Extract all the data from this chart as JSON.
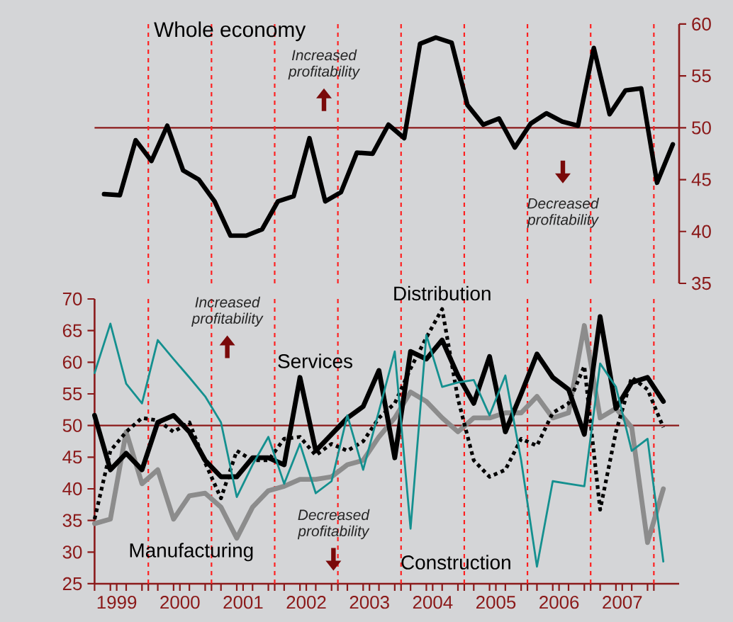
{
  "chart_data": [
    {
      "type": "line",
      "title": "Whole economy",
      "x": [
        1999.3,
        1999.55,
        1999.8,
        2000.05,
        2000.3,
        2000.55,
        2000.8,
        2001.05,
        2001.3,
        2001.55,
        2001.8,
        2002.05,
        2002.3,
        2002.55,
        2002.8,
        2003.05,
        2003.3,
        2003.55,
        2003.8,
        2004.05,
        2004.3,
        2004.55,
        2004.8,
        2005.05,
        2005.3,
        2005.55,
        2005.8,
        2006.05,
        2006.3,
        2006.55,
        2006.8,
        2007.05,
        2007.3,
        2007.55,
        2007.8,
        2008.05,
        2008.3
      ],
      "series": [
        {
          "color": "#000000",
          "values": [
            43.6,
            43.5,
            48.8,
            46.8,
            50.2,
            45.9,
            45.0,
            42.9,
            39.6,
            39.6,
            40.2,
            42.9,
            43.4,
            49.0,
            42.9,
            43.8,
            47.6,
            47.5,
            50.3,
            49.0,
            58.1,
            58.7,
            58.2,
            52.2,
            50.3,
            50.9,
            48.1,
            50.4,
            51.4,
            50.6,
            50.2,
            57.7,
            51.3,
            53.6,
            53.8,
            44.7,
            48.4
          ]
        }
      ],
      "xlim": [
        1999.15,
        2008.4
      ],
      "ylim": [
        35,
        60
      ],
      "yticks": [
        35,
        40,
        45,
        50,
        55,
        60
      ],
      "tick_labels": "y",
      "ref_lines": [
        {
          "axis": "y",
          "value": 50,
          "color": "#8b1a1a",
          "line_style": "solid"
        },
        {
          "axis": "x",
          "value": 2000,
          "color": "#ff2020",
          "line_style": "dashed"
        },
        {
          "axis": "x",
          "value": 2001,
          "color": "#ff2020",
          "line_style": "dashed"
        },
        {
          "axis": "x",
          "value": 2002,
          "color": "#ff2020",
          "line_style": "dashed"
        },
        {
          "axis": "x",
          "value": 2003,
          "color": "#ff2020",
          "line_style": "dashed"
        },
        {
          "axis": "x",
          "value": 2004,
          "color": "#ff2020",
          "line_style": "dashed"
        },
        {
          "axis": "x",
          "value": 2005,
          "color": "#ff2020",
          "line_style": "dashed"
        },
        {
          "axis": "x",
          "value": 2006,
          "color": "#ff2020",
          "line_style": "dashed"
        },
        {
          "axis": "x",
          "value": 2007,
          "color": "#ff2020",
          "line_style": "dashed"
        },
        {
          "axis": "x",
          "value": 2008,
          "color": "#ff2020",
          "line_style": "dashed"
        }
      ],
      "annotations": [
        "Increased profitability",
        "Decreased profitability"
      ]
    },
    {
      "type": "line",
      "x": [
        1999.15,
        1999.4,
        1999.65,
        1999.9,
        2000.15,
        2000.4,
        2000.65,
        2000.9,
        2001.15,
        2001.4,
        2001.65,
        2001.9,
        2002.15,
        2002.4,
        2002.65,
        2002.9,
        2003.15,
        2003.4,
        2003.65,
        2003.9,
        2004.15,
        2004.4,
        2004.65,
        2004.9,
        2005.15,
        2005.4,
        2005.65,
        2005.9,
        2006.15,
        2006.4,
        2006.65,
        2006.9,
        2007.15,
        2007.4,
        2007.65,
        2007.9,
        2008.15
      ],
      "series": [
        {
          "name": "Manufacturing",
          "color": "#8c8c8c",
          "values": [
            34.5,
            35.2,
            49.0,
            40.8,
            43.0,
            35.2,
            38.9,
            39.3,
            37.1,
            32.2,
            37.1,
            39.7,
            40.4,
            41.5,
            41.5,
            41.9,
            43.8,
            44.5,
            48.2,
            51.2,
            55.3,
            53.8,
            51.2,
            49.0,
            51.2,
            51.2,
            52.0,
            52.0,
            54.6,
            51.2,
            52.0,
            65.8,
            51.2,
            52.7,
            49.7,
            31.5,
            40.0
          ]
        },
        {
          "name": "Services",
          "color": "#000000",
          "values": [
            51.6,
            43.0,
            45.6,
            43.0,
            50.5,
            51.6,
            49.0,
            44.5,
            41.9,
            41.9,
            44.9,
            44.9,
            43.8,
            57.6,
            46.0,
            48.6,
            51.2,
            53.0,
            58.7,
            44.9,
            61.7,
            60.5,
            63.5,
            57.9,
            53.5,
            60.9,
            49.0,
            55.0,
            61.3,
            57.6,
            55.7,
            48.6,
            67.2,
            52.7,
            56.8,
            57.6,
            53.8
          ]
        },
        {
          "name": "Distribution",
          "color": "#000000",
          "line_style": "dotted",
          "values": [
            35.2,
            46.0,
            49.0,
            51.2,
            50.8,
            49.0,
            50.5,
            44.1,
            38.5,
            46.0,
            44.5,
            44.5,
            47.9,
            48.2,
            45.3,
            47.1,
            46.0,
            47.5,
            51.2,
            53.5,
            59.0,
            63.9,
            68.4,
            54.2,
            44.5,
            41.9,
            43.0,
            47.9,
            46.8,
            52.0,
            53.5,
            59.4,
            36.7,
            49.0,
            57.6,
            55.7,
            49.7
          ]
        },
        {
          "name": "Construction",
          "color": "#14908f",
          "values": [
            58.3,
            66.1,
            56.6,
            53.5,
            63.5,
            60.5,
            57.6,
            54.6,
            50.5,
            38.7,
            43.8,
            48.2,
            40.8,
            47.1,
            39.3,
            41.2,
            51.6,
            43.0,
            52.3,
            61.7,
            33.7,
            64.3,
            56.1,
            56.8,
            57.2,
            51.6,
            57.9,
            44.5,
            27.7,
            41.2,
            40.8,
            40.4,
            59.8,
            56.1,
            46.0,
            47.9,
            28.5
          ]
        }
      ],
      "xlim": [
        1999.15,
        2008.4
      ],
      "ylim": [
        25,
        70
      ],
      "yticks": [
        25,
        30,
        35,
        40,
        45,
        50,
        55,
        60,
        65,
        70
      ],
      "xticks": [
        {
          "value": 1999.5,
          "label": "1999"
        },
        {
          "value": 2000.5,
          "label": "2000"
        },
        {
          "value": 2001.5,
          "label": "2001"
        },
        {
          "value": 2002.5,
          "label": "2002"
        },
        {
          "value": 2003.5,
          "label": "2003"
        },
        {
          "value": 2004.5,
          "label": "2004"
        },
        {
          "value": 2005.5,
          "label": "2005"
        },
        {
          "value": 2006.5,
          "label": "2006"
        },
        {
          "value": 2007.5,
          "label": "2007"
        },
        {
          "value": 2000,
          "label": null
        },
        {
          "value": 2001,
          "label": null
        },
        {
          "value": 2002,
          "label": null
        },
        {
          "value": 2003,
          "label": null
        },
        {
          "value": 2004,
          "label": null
        },
        {
          "value": 2005,
          "label": null
        },
        {
          "value": 2006,
          "label": null
        },
        {
          "value": 2007,
          "label": null
        },
        {
          "value": 2008,
          "label": null
        },
        {
          "value": 1999.15,
          "label": null
        },
        {
          "value": 1999.4,
          "label": null
        },
        {
          "value": 1999.65,
          "label": null
        },
        {
          "value": 1999.9,
          "label": null
        },
        {
          "value": 2000.15,
          "label": null
        },
        {
          "value": 2000.4,
          "label": null
        },
        {
          "value": 2000.65,
          "label": null
        },
        {
          "value": 2000.9,
          "label": null
        },
        {
          "value": 2001.15,
          "label": null
        },
        {
          "value": 2001.4,
          "label": null
        },
        {
          "value": 2001.65,
          "label": null
        },
        {
          "value": 2001.9,
          "label": null
        },
        {
          "value": 2002.15,
          "label": null
        },
        {
          "value": 2002.4,
          "label": null
        },
        {
          "value": 2002.65,
          "label": null
        },
        {
          "value": 2002.9,
          "label": null
        },
        {
          "value": 2003.15,
          "label": null
        },
        {
          "value": 2003.4,
          "label": null
        },
        {
          "value": 2003.65,
          "label": null
        },
        {
          "value": 2003.9,
          "label": null
        },
        {
          "value": 2004.15,
          "label": null
        },
        {
          "value": 2004.4,
          "label": null
        },
        {
          "value": 2004.65,
          "label": null
        },
        {
          "value": 2004.9,
          "label": null
        },
        {
          "value": 2005.15,
          "label": null
        },
        {
          "value": 2005.4,
          "label": null
        },
        {
          "value": 2005.65,
          "label": null
        },
        {
          "value": 2005.9,
          "label": null
        },
        {
          "value": 2006.15,
          "label": null
        },
        {
          "value": 2006.4,
          "label": null
        },
        {
          "value": 2006.65,
          "label": null
        },
        {
          "value": 2006.9,
          "label": null
        },
        {
          "value": 2007.15,
          "label": null
        },
        {
          "value": 2007.4,
          "label": null
        },
        {
          "value": 2007.65,
          "label": null
        },
        {
          "value": 2007.9,
          "label": null
        }
      ],
      "ref_lines": [
        {
          "axis": "y",
          "value": 50,
          "color": "#8b1a1a",
          "line_style": "solid"
        },
        {
          "axis": "x",
          "value": 2000,
          "color": "#ff2020",
          "line_style": "dashed"
        },
        {
          "axis": "x",
          "value": 2001,
          "color": "#ff2020",
          "line_style": "dashed"
        },
        {
          "axis": "x",
          "value": 2002,
          "color": "#ff2020",
          "line_style": "dashed"
        },
        {
          "axis": "x",
          "value": 2003,
          "color": "#ff2020",
          "line_style": "dashed"
        },
        {
          "axis": "x",
          "value": 2004,
          "color": "#ff2020",
          "line_style": "dashed"
        },
        {
          "axis": "x",
          "value": 2005,
          "color": "#ff2020",
          "line_style": "dashed"
        },
        {
          "axis": "x",
          "value": 2006,
          "color": "#ff2020",
          "line_style": "dashed"
        },
        {
          "axis": "x",
          "value": 2007,
          "color": "#ff2020",
          "line_style": "dashed"
        },
        {
          "axis": "x",
          "value": 2008,
          "color": "#ff2020",
          "line_style": "dashed"
        }
      ],
      "annotations": [
        "Increased profitability",
        "Decreased profitability"
      ]
    }
  ]
}
